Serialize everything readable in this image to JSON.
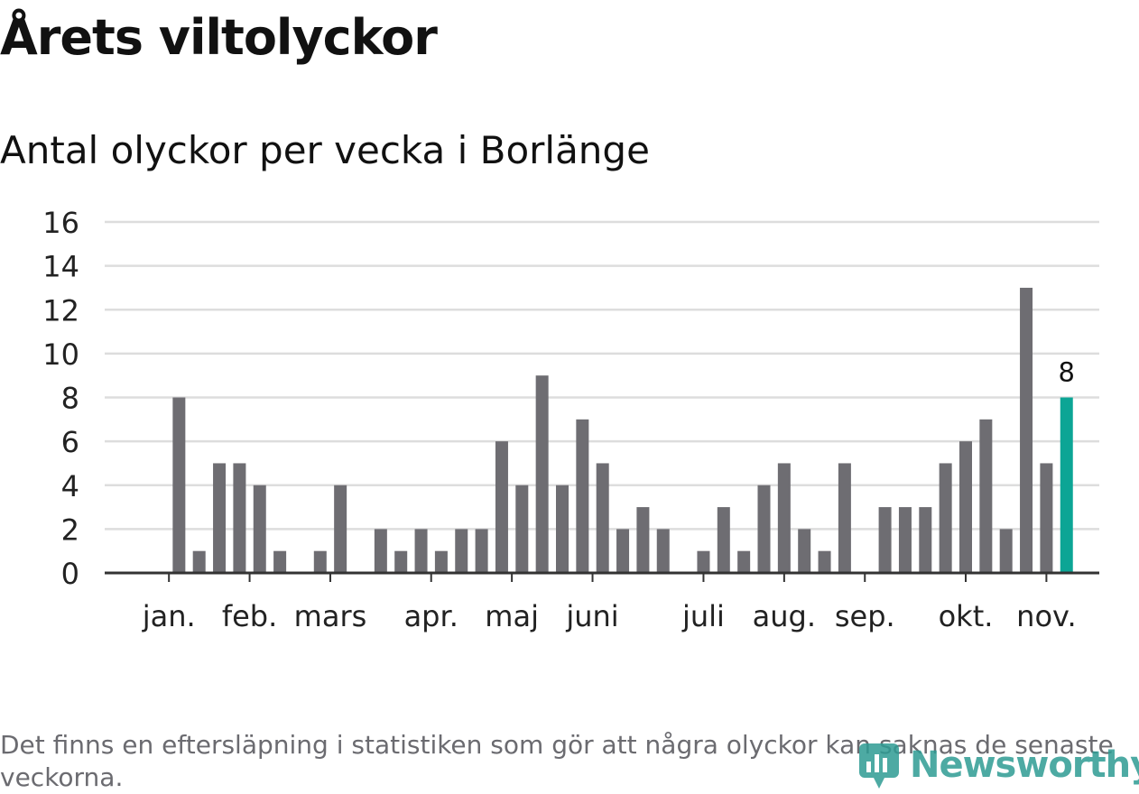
{
  "title": "Årets viltolyckor",
  "subtitle": "Antal olyckor per vecka i Borlänge",
  "note": "Det finns en eftersläpning i statistiken som gör att några olyckor kan saknas de senaste veckorna.",
  "logo_text": "Newsworthy",
  "colors": {
    "bar": "#6e6d72",
    "highlight": "#0ca595",
    "grid": "#dddddd",
    "axis": "#333333"
  },
  "chart_data": {
    "type": "bar",
    "title": "Antal olyckor per vecka i Borlänge",
    "xlabel": "",
    "ylabel": "",
    "ylim": [
      0,
      16
    ],
    "yticks": [
      0,
      2,
      4,
      6,
      8,
      10,
      12,
      14,
      16
    ],
    "x": [
      1,
      2,
      3,
      4,
      5,
      6,
      7,
      8,
      9,
      10,
      11,
      12,
      13,
      14,
      15,
      16,
      17,
      18,
      19,
      20,
      21,
      22,
      23,
      24,
      25,
      26,
      27,
      28,
      29,
      30,
      31,
      32,
      33,
      34,
      35,
      36,
      37,
      38,
      39,
      40,
      41,
      42,
      43,
      44,
      45,
      46,
      47,
      48,
      49
    ],
    "values": [
      0,
      8,
      1,
      5,
      5,
      4,
      1,
      0,
      1,
      4,
      0,
      2,
      1,
      2,
      1,
      2,
      2,
      6,
      4,
      9,
      4,
      7,
      5,
      2,
      3,
      2,
      0,
      1,
      3,
      1,
      4,
      5,
      2,
      1,
      5,
      0,
      3,
      3,
      3,
      5,
      6,
      7,
      2,
      13,
      5,
      8,
      0,
      0,
      0
    ],
    "highlight_index": 45,
    "highlight_label": "8",
    "month_labels": [
      {
        "label": "jan.",
        "x": 1.5
      },
      {
        "label": "feb.",
        "x": 5.5
      },
      {
        "label": "mars",
        "x": 9.5
      },
      {
        "label": "apr.",
        "x": 14.5
      },
      {
        "label": "maj",
        "x": 18.5
      },
      {
        "label": "juni",
        "x": 22.5
      },
      {
        "label": "juli",
        "x": 28
      },
      {
        "label": "aug.",
        "x": 32
      },
      {
        "label": "sep.",
        "x": 36
      },
      {
        "label": "okt.",
        "x": 41
      },
      {
        "label": "nov.",
        "x": 45
      }
    ],
    "grid": true
  }
}
